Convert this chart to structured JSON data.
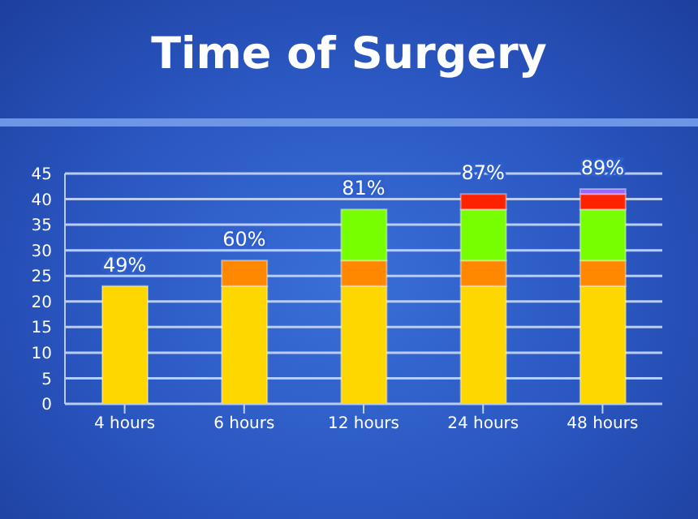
{
  "chart_data": {
    "type": "bar",
    "title": "Time of Surgery",
    "stacked": true,
    "categories": [
      "4 hours",
      "6 hours",
      "12 hours",
      "24 hours",
      "48 hours"
    ],
    "series": [
      {
        "color": "#ffd700",
        "values": [
          23,
          23,
          23,
          23,
          23
        ]
      },
      {
        "color": "#ff8800",
        "values": [
          null,
          5,
          5,
          5,
          5
        ]
      },
      {
        "color": "#77ff00",
        "values": [
          null,
          null,
          10,
          10,
          10
        ]
      },
      {
        "color": "#ff2200",
        "values": [
          null,
          null,
          null,
          3,
          3
        ]
      },
      {
        "color": "#9966ff",
        "values": [
          null,
          null,
          null,
          null,
          1
        ]
      }
    ],
    "annotations": [
      {
        "text": "49%",
        "x": "4 hours",
        "y": 23
      },
      {
        "text": "60%",
        "x": "6 hours",
        "y": 28
      },
      {
        "text": "81%",
        "x": "12 hours",
        "y": 38
      },
      {
        "text": "87%",
        "x": "24 hours",
        "y": 41
      },
      {
        "text": "89%",
        "x": "48 hours",
        "y": 42
      }
    ],
    "ylim": [
      0,
      45
    ],
    "yticks": [
      0,
      5,
      10,
      15,
      20,
      25,
      30,
      35,
      40,
      45
    ],
    "grid": "y",
    "legend": false
  }
}
